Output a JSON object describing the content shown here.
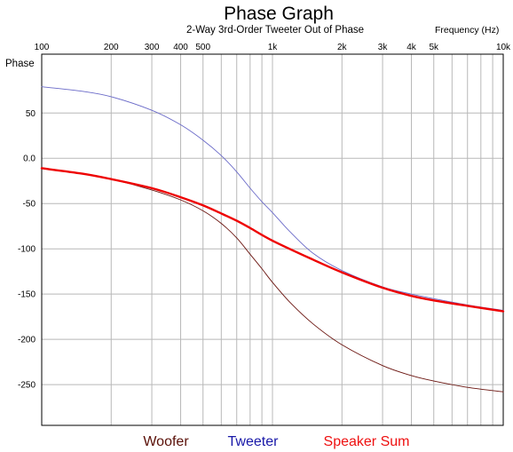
{
  "chart_data": {
    "type": "line",
    "title": "Phase Graph",
    "subtitle": "2-Way 3rd-Order Tweeter Out of Phase",
    "xlabel": "Frequency   (Hz)",
    "ylabel": "Phase",
    "x_scale": "log",
    "xlim": [
      100,
      10000
    ],
    "ylim": [
      -295,
      115
    ],
    "grid": true,
    "x_ticks": [
      {
        "value": 100,
        "label": "100"
      },
      {
        "value": 200,
        "label": "200"
      },
      {
        "value": 300,
        "label": "300"
      },
      {
        "value": 400,
        "label": "400"
      },
      {
        "value": 500,
        "label": "500"
      },
      {
        "value": 1000,
        "label": "1k"
      },
      {
        "value": 2000,
        "label": "2k"
      },
      {
        "value": 3000,
        "label": "3k"
      },
      {
        "value": 4000,
        "label": "4k"
      },
      {
        "value": 5000,
        "label": "5k"
      },
      {
        "value": 10000,
        "label": "10k"
      }
    ],
    "y_ticks": [
      {
        "value": 50,
        "label": "50"
      },
      {
        "value": 0,
        "label": "0.0"
      },
      {
        "value": -50,
        "label": "-50"
      },
      {
        "value": -100,
        "label": "-100"
      },
      {
        "value": -150,
        "label": "-150"
      },
      {
        "value": -200,
        "label": "-200"
      },
      {
        "value": -250,
        "label": "-250"
      }
    ],
    "legend_placement": "bottom",
    "series": [
      {
        "name": "Woofer",
        "color": "#6b1510",
        "legend_color": "#5a1008",
        "x": [
          100,
          150,
          200,
          300,
          400,
          500,
          600,
          700,
          800,
          900,
          1000,
          1200,
          1500,
          2000,
          3000,
          4000,
          5000,
          7000,
          10000
        ],
        "y": [
          -11,
          -17,
          -23,
          -35,
          -46,
          -58,
          -72,
          -88,
          -106,
          -122,
          -137,
          -160,
          -183,
          -206,
          -229,
          -240,
          -246,
          -253,
          -258
        ]
      },
      {
        "name": "Tweeter",
        "color": "#6a6ac8",
        "legend_color": "#1818a8",
        "x": [
          100,
          150,
          200,
          300,
          400,
          500,
          600,
          700,
          800,
          900,
          1000,
          1200,
          1500,
          2000,
          3000,
          4000,
          5000,
          7000,
          10000
        ],
        "y": [
          79,
          74,
          68,
          53,
          37,
          20,
          3,
          -15,
          -33,
          -48,
          -60,
          -82,
          -105,
          -124,
          -142,
          -150,
          -155,
          -162,
          -168
        ]
      },
      {
        "name": "Speaker Sum",
        "color": "#ee0000",
        "legend_color": "#ee1010",
        "x": [
          100,
          150,
          200,
          300,
          400,
          500,
          600,
          700,
          800,
          1000,
          1500,
          2000,
          3000,
          4000,
          5000,
          7000,
          10000
        ],
        "y": [
          -11,
          -17,
          -23,
          -33,
          -43,
          -52,
          -61,
          -69,
          -77,
          -91,
          -112,
          -126,
          -143,
          -152,
          -157,
          -163,
          -169
        ]
      }
    ]
  }
}
